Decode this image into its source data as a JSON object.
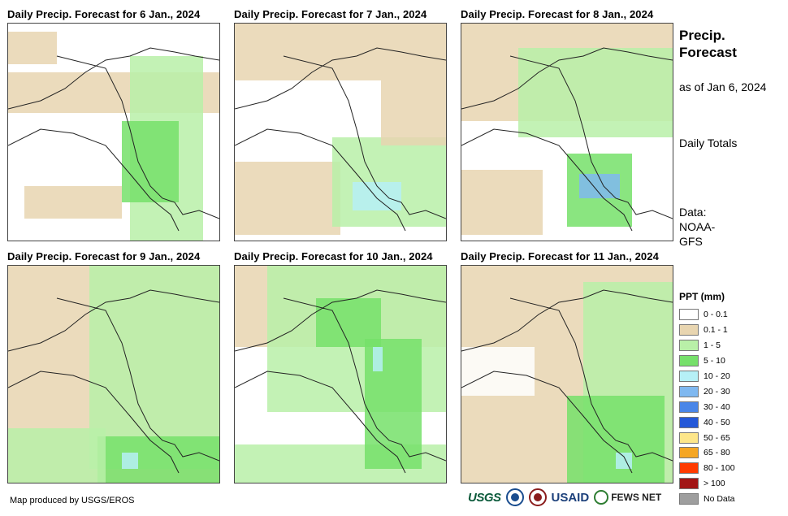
{
  "panels": [
    {
      "title": "Daily Precip. Forecast for 6 Jan., 2024"
    },
    {
      "title": "Daily Precip. Forecast for 7 Jan., 2024"
    },
    {
      "title": "Daily Precip. Forecast for 8 Jan., 2024"
    },
    {
      "title": "Daily Precip. Forecast for 9 Jan., 2024"
    },
    {
      "title": "Daily Precip. Forecast for 10 Jan., 2024"
    },
    {
      "title": "Daily Precip. Forecast for 11 Jan., 2024"
    }
  ],
  "side": {
    "title": "Precip. Forecast",
    "as_of": "as of Jan 6, 2024",
    "totals": "Daily Totals",
    "source": "Data: NOAA- GFS"
  },
  "legend": {
    "title": "PPT (mm)",
    "items": [
      {
        "label": "0 - 0.1",
        "color": "#ffffff"
      },
      {
        "label": "0.1 - 1",
        "color": "#e8d5b0"
      },
      {
        "label": "1 - 5",
        "color": "#b9f0a8"
      },
      {
        "label": "5 - 10",
        "color": "#76e06a"
      },
      {
        "label": "10 - 20",
        "color": "#b6f0f6"
      },
      {
        "label": "20 - 30",
        "color": "#7fb8f0"
      },
      {
        "label": "30 - 40",
        "color": "#4a86e8"
      },
      {
        "label": "40 - 50",
        "color": "#2458d8"
      },
      {
        "label": "50 - 65",
        "color": "#fde68a"
      },
      {
        "label": "65 - 80",
        "color": "#f5a623"
      },
      {
        "label": "80 - 100",
        "color": "#ff3b00"
      },
      {
        "label": "> 100",
        "color": "#a21515"
      },
      {
        "label": "No Data",
        "color": "#9e9e9e"
      }
    ]
  },
  "footer": {
    "credit": "Map produced by USGS/EROS"
  },
  "logos": {
    "usgs": "USGS",
    "usaid": "USAID",
    "fews": "FEWS NET"
  }
}
